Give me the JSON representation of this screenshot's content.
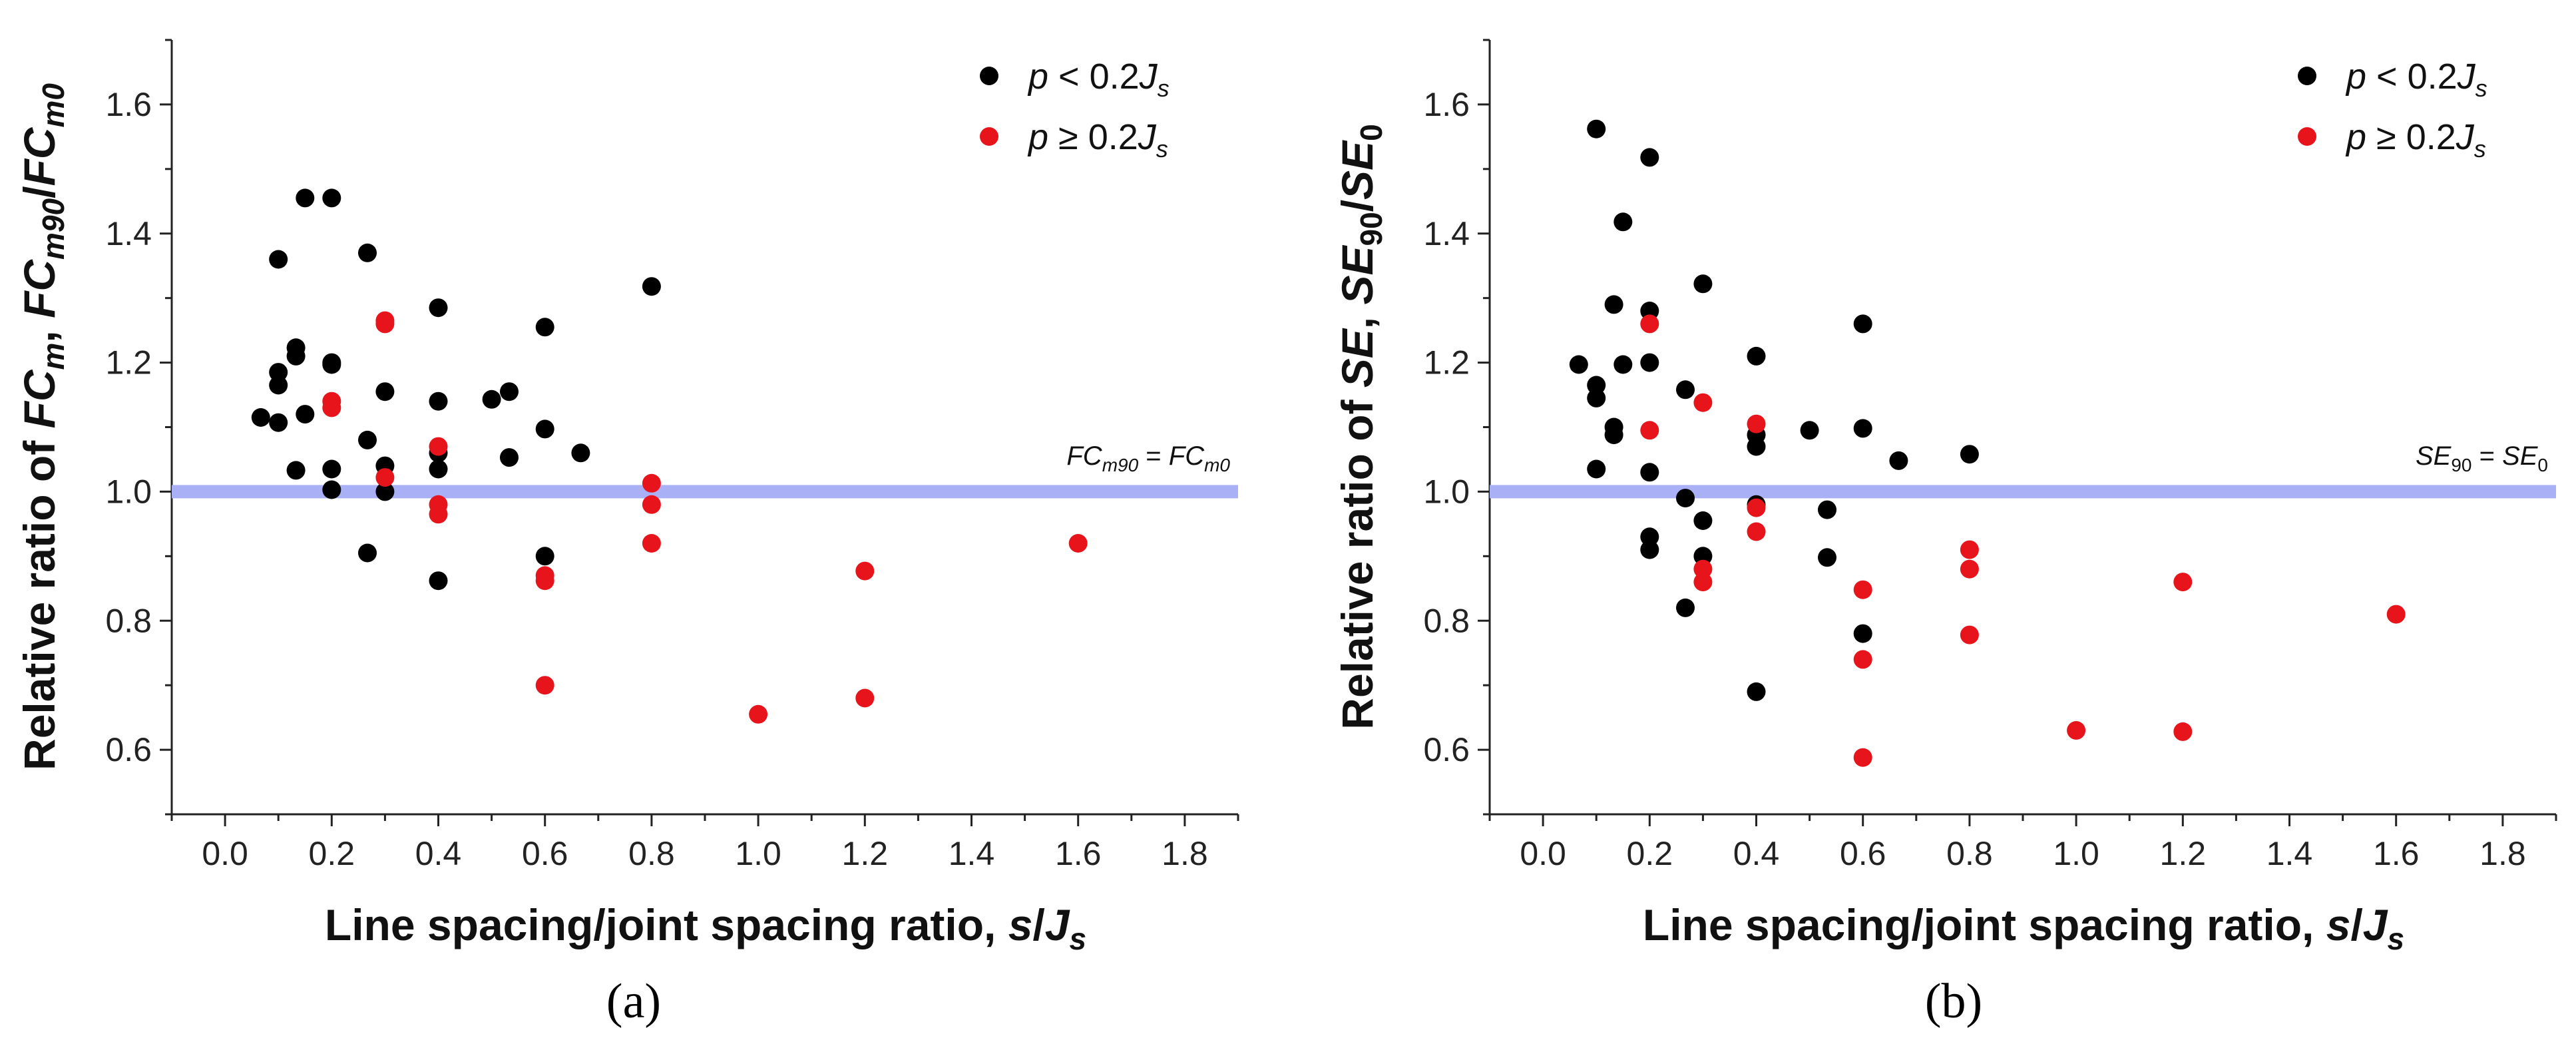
{
  "chart_data": [
    {
      "type": "scatter",
      "panel_label": "(a)",
      "xlabel": "Line spacing/joint spacing ratio, s/J_s",
      "ylabel": "Relative ratio of FC_m, FC_m90/FC_m0",
      "xlim": [
        -0.1,
        1.9
      ],
      "ylim": [
        0.5,
        1.7
      ],
      "xticks": [
        "0.0",
        "0.2",
        "0.4",
        "0.6",
        "0.8",
        "1.0",
        "1.2",
        "1.4",
        "1.6",
        "1.8"
      ],
      "yticks": [
        "0.6",
        "0.8",
        "1.0",
        "1.2",
        "1.4",
        "1.6"
      ],
      "reference_line": {
        "y": 1.0,
        "label": "FC_m90 = FC_m0",
        "color": "#aab0f5"
      },
      "legend_position": "top-right",
      "series": [
        {
          "name": "p < 0.2J_s",
          "color": "#000000",
          "points": [
            [
              0.067,
              1.115
            ],
            [
              0.1,
              1.36
            ],
            [
              0.1,
              1.185
            ],
            [
              0.1,
              1.165
            ],
            [
              0.1,
              1.107
            ],
            [
              0.133,
              1.223
            ],
            [
              0.133,
              1.21
            ],
            [
              0.133,
              1.033
            ],
            [
              0.15,
              1.455
            ],
            [
              0.15,
              1.12
            ],
            [
              0.2,
              1.455
            ],
            [
              0.2,
              1.2
            ],
            [
              0.2,
              1.197
            ],
            [
              0.2,
              1.035
            ],
            [
              0.2,
              1.003
            ],
            [
              0.267,
              1.37
            ],
            [
              0.267,
              1.08
            ],
            [
              0.267,
              0.905
            ],
            [
              0.3,
              1.155
            ],
            [
              0.3,
              1.04
            ],
            [
              0.3,
              1.0
            ],
            [
              0.4,
              1.285
            ],
            [
              0.4,
              1.14
            ],
            [
              0.4,
              1.06
            ],
            [
              0.4,
              1.035
            ],
            [
              0.4,
              0.862
            ],
            [
              0.5,
              1.143
            ],
            [
              0.533,
              1.155
            ],
            [
              0.533,
              1.053
            ],
            [
              0.6,
              1.255
            ],
            [
              0.6,
              1.097
            ],
            [
              0.6,
              0.9
            ],
            [
              0.667,
              1.06
            ],
            [
              0.8,
              1.318
            ]
          ]
        },
        {
          "name": "p ≥ 0.2J_s",
          "color": "#e8141c",
          "points": [
            [
              0.2,
              1.14
            ],
            [
              0.2,
              1.13
            ],
            [
              0.3,
              1.265
            ],
            [
              0.3,
              1.26
            ],
            [
              0.3,
              1.022
            ],
            [
              0.4,
              1.07
            ],
            [
              0.4,
              0.98
            ],
            [
              0.4,
              0.965
            ],
            [
              0.6,
              0.87
            ],
            [
              0.6,
              0.862
            ],
            [
              0.6,
              0.7
            ],
            [
              0.8,
              1.013
            ],
            [
              0.8,
              0.98
            ],
            [
              0.8,
              0.92
            ],
            [
              1.0,
              0.655
            ],
            [
              1.2,
              0.877
            ],
            [
              1.2,
              0.68
            ],
            [
              1.6,
              0.92
            ]
          ]
        }
      ]
    },
    {
      "type": "scatter",
      "panel_label": "(b)",
      "xlabel": "Line spacing/joint spacing ratio, s/J_s",
      "ylabel": "Relative ratio of SE, SE_90/SE_0",
      "xlim": [
        -0.1,
        1.9
      ],
      "ylim": [
        0.5,
        1.7
      ],
      "xticks": [
        "0.0",
        "0.2",
        "0.4",
        "0.6",
        "0.8",
        "1.0",
        "1.2",
        "1.4",
        "1.6",
        "1.8"
      ],
      "yticks": [
        "0.6",
        "0.8",
        "1.0",
        "1.2",
        "1.4",
        "1.6"
      ],
      "reference_line": {
        "y": 1.0,
        "label": "SE_90 = SE_0",
        "color": "#aab0f5"
      },
      "legend_position": "top-right",
      "series": [
        {
          "name": "p < 0.2J_s",
          "color": "#000000",
          "points": [
            [
              0.067,
              1.197
            ],
            [
              0.1,
              1.562
            ],
            [
              0.1,
              1.165
            ],
            [
              0.1,
              1.145
            ],
            [
              0.1,
              1.035
            ],
            [
              0.133,
              1.29
            ],
            [
              0.133,
              1.1
            ],
            [
              0.133,
              1.088
            ],
            [
              0.15,
              1.418
            ],
            [
              0.15,
              1.197
            ],
            [
              0.2,
              1.518
            ],
            [
              0.2,
              1.28
            ],
            [
              0.2,
              1.2
            ],
            [
              0.2,
              1.03
            ],
            [
              0.2,
              0.93
            ],
            [
              0.2,
              0.91
            ],
            [
              0.267,
              1.158
            ],
            [
              0.267,
              0.99
            ],
            [
              0.267,
              0.82
            ],
            [
              0.3,
              1.322
            ],
            [
              0.3,
              0.955
            ],
            [
              0.3,
              0.9
            ],
            [
              0.4,
              1.21
            ],
            [
              0.4,
              1.088
            ],
            [
              0.4,
              1.07
            ],
            [
              0.4,
              0.98
            ],
            [
              0.4,
              0.69
            ],
            [
              0.5,
              1.095
            ],
            [
              0.533,
              0.972
            ],
            [
              0.533,
              0.898
            ],
            [
              0.6,
              1.26
            ],
            [
              0.6,
              1.098
            ],
            [
              0.6,
              0.78
            ],
            [
              0.667,
              1.048
            ],
            [
              0.8,
              1.058
            ]
          ]
        },
        {
          "name": "p ≥ 0.2J_s",
          "color": "#e8141c",
          "points": [
            [
              0.2,
              1.26
            ],
            [
              0.2,
              1.095
            ],
            [
              0.3,
              1.138
            ],
            [
              0.3,
              0.88
            ],
            [
              0.3,
              0.86
            ],
            [
              0.4,
              1.105
            ],
            [
              0.4,
              0.975
            ],
            [
              0.4,
              0.938
            ],
            [
              0.6,
              0.848
            ],
            [
              0.6,
              0.74
            ],
            [
              0.6,
              0.588
            ],
            [
              0.8,
              0.91
            ],
            [
              0.8,
              0.88
            ],
            [
              0.8,
              0.778
            ],
            [
              1.0,
              0.63
            ],
            [
              1.2,
              0.86
            ],
            [
              1.2,
              0.628
            ],
            [
              1.6,
              0.81
            ]
          ]
        }
      ]
    }
  ]
}
